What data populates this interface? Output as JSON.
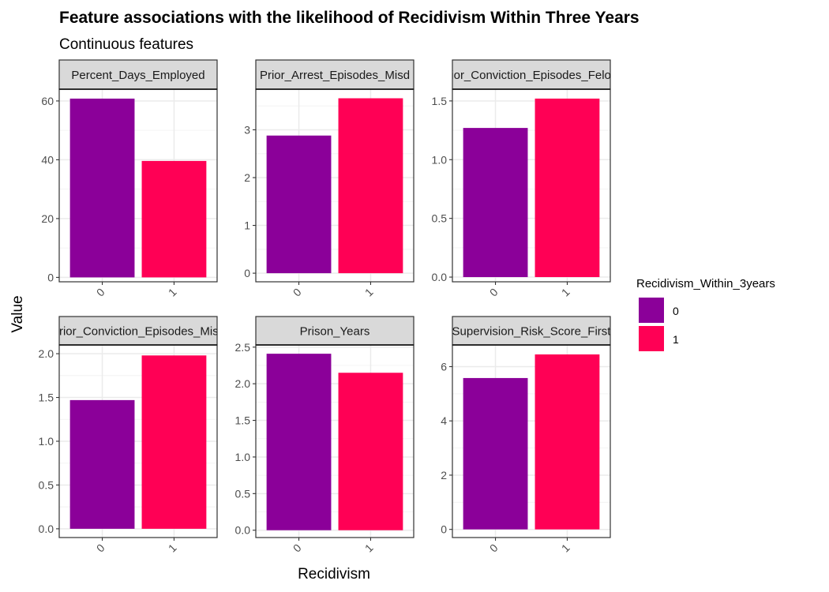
{
  "chart_data": {
    "type": "bar",
    "title": "Feature associations with the likelihood of Recidivism Within Three Years",
    "subtitle": "Continuous features",
    "xlabel": "Recidivism",
    "ylabel": "Value",
    "categories": [
      "0",
      "1"
    ],
    "legend": {
      "title": "Recidivism_Within_3years",
      "position": "right",
      "entries": [
        {
          "label": "0",
          "color": "#8B0099"
        },
        {
          "label": "1",
          "color": "#FF0055"
        }
      ]
    },
    "grid": true,
    "panels": [
      {
        "strip": "Percent_Days_Employed",
        "values": [
          60.8,
          39.6
        ],
        "ylim": [
          -1.5,
          64
        ],
        "ticks": [
          0,
          20,
          40,
          60
        ],
        "tick_labels": [
          "0",
          "20",
          "40",
          "60"
        ]
      },
      {
        "strip": "Prior_Arrest_Episodes_Misd",
        "values": [
          2.88,
          3.66
        ],
        "ylim": [
          -0.18,
          3.85
        ],
        "ticks": [
          0,
          1,
          2,
          3
        ],
        "tick_labels": [
          "0",
          "1",
          "2",
          "3"
        ]
      },
      {
        "strip": "Prior_Conviction_Episodes_Felony",
        "values": [
          1.27,
          1.52
        ],
        "ylim": [
          -0.04,
          1.6
        ],
        "ticks": [
          0,
          0.5,
          1,
          1.5
        ],
        "tick_labels": [
          "0.0",
          "0.5",
          "1.0",
          "1.5"
        ]
      },
      {
        "strip": "Prior_Conviction_Episodes_Misd",
        "values": [
          1.47,
          1.98
        ],
        "ylim": [
          -0.1,
          2.1
        ],
        "ticks": [
          0,
          0.5,
          1,
          1.5,
          2
        ],
        "tick_labels": [
          "0.0",
          "0.5",
          "1.0",
          "1.5",
          "2.0"
        ]
      },
      {
        "strip": "Prison_Years",
        "values": [
          2.41,
          2.15
        ],
        "ylim": [
          -0.1,
          2.53
        ],
        "ticks": [
          0,
          0.5,
          1,
          1.5,
          2,
          2.5
        ],
        "tick_labels": [
          "0.0",
          "0.5",
          "1.0",
          "1.5",
          "2.0",
          "2.5"
        ]
      },
      {
        "strip": "Supervision_Risk_Score_First",
        "values": [
          5.58,
          6.45
        ],
        "ylim": [
          -0.3,
          6.8
        ],
        "ticks": [
          0,
          2,
          4,
          6
        ],
        "tick_labels": [
          "0",
          "2",
          "4",
          "6"
        ]
      }
    ]
  }
}
